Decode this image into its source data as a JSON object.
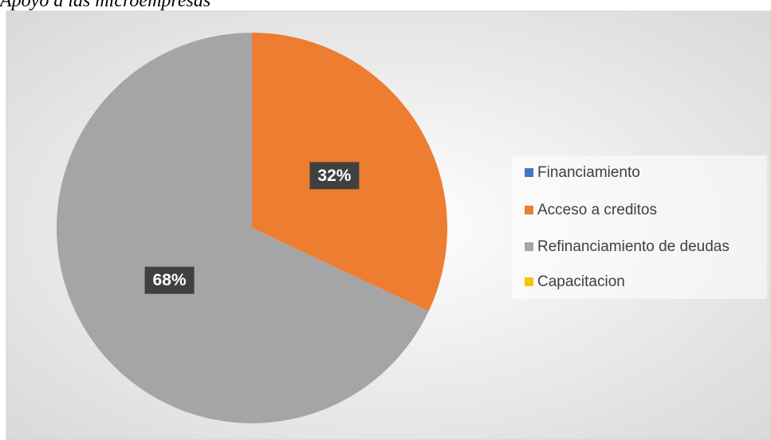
{
  "chart_data": {
    "type": "pie",
    "title": "Apoyo a las microempresas",
    "categories": [
      "Financiamiento",
      "Acceso a creditos",
      "Refinanciamiento de deudas",
      "Capacitacion"
    ],
    "values": [
      0,
      32,
      68,
      0
    ],
    "value_labels": [
      null,
      "32%",
      "68%",
      null
    ],
    "colors": [
      "#4472c4",
      "#ed7d31",
      "#a5a5a5",
      "#ffc000"
    ],
    "legend": "right"
  }
}
